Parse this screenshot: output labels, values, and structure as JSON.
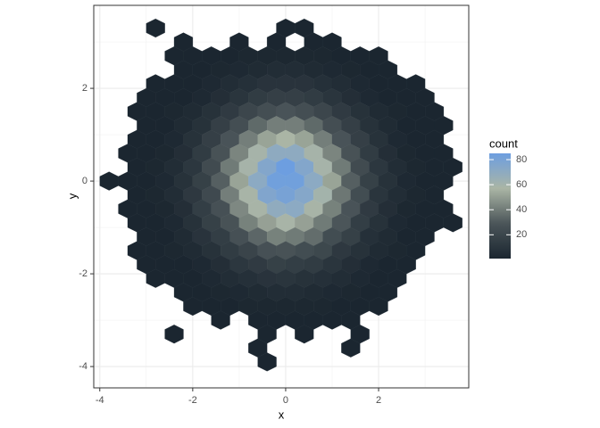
{
  "chart_data": {
    "type": "hexbin",
    "x_label": "x",
    "y_label": "y",
    "xlim": [
      -4.13,
      3.94
    ],
    "ylim": [
      -4.46,
      3.79
    ],
    "xticks": [
      -4,
      -2,
      0,
      2
    ],
    "yticks": [
      -4,
      -2,
      0,
      2
    ],
    "grid": true,
    "legend": {
      "title": "count",
      "position": "right",
      "ticks": [
        20,
        40,
        60,
        80
      ],
      "colors": [
        "#1b2630",
        "#4b5559",
        "#aab5a5",
        "#6d9ee0"
      ]
    },
    "rows": [
      {
        "y": 3.3,
        "x": [
          -2.8,
          0,
          0.4
        ],
        "count": [
          1,
          1,
          1
        ]
      },
      {
        "y": 3.0,
        "x": [
          -2.2,
          -1.0,
          -0.2,
          0.6,
          1.0
        ],
        "count": [
          1,
          1,
          1,
          1,
          1
        ]
      },
      {
        "y": 2.7,
        "x": [
          -2.4,
          -2.0,
          -1.6,
          -1.2,
          -0.8,
          -0.4,
          0,
          0.4,
          0.8,
          1.2,
          1.6,
          2.0
        ],
        "count": [
          1,
          1,
          1,
          1,
          2,
          2,
          2,
          2,
          2,
          1,
          1,
          1
        ]
      },
      {
        "y": 2.4,
        "x": [
          -2.2,
          -1.8,
          -1.4,
          -1.0,
          -0.6,
          -0.2,
          0.2,
          0.6,
          1.0,
          1.4,
          1.8,
          2.2
        ],
        "count": [
          1,
          1,
          2,
          3,
          4,
          5,
          5,
          4,
          3,
          2,
          1,
          1
        ]
      },
      {
        "y": 2.1,
        "x": [
          -2.8,
          -2.4,
          -2.0,
          -1.6,
          -1.2,
          -0.8,
          -0.4,
          0,
          0.4,
          0.8,
          1.2,
          1.6,
          2.0,
          2.4,
          2.8
        ],
        "count": [
          1,
          1,
          1,
          3,
          5,
          7,
          9,
          9,
          9,
          7,
          5,
          3,
          1,
          1,
          1
        ]
      },
      {
        "y": 1.8,
        "x": [
          -3.0,
          -2.6,
          -2.2,
          -1.8,
          -1.4,
          -1.0,
          -0.6,
          -0.2,
          0.2,
          0.6,
          1.0,
          1.4,
          1.8,
          2.2,
          2.6,
          3.0
        ],
        "count": [
          1,
          1,
          1,
          3,
          6,
          10,
          14,
          16,
          16,
          14,
          10,
          6,
          3,
          1,
          1,
          1
        ]
      },
      {
        "y": 1.5,
        "x": [
          -3.2,
          -2.8,
          -2.4,
          -2.0,
          -1.6,
          -1.2,
          -0.8,
          -0.4,
          0,
          0.4,
          0.8,
          1.2,
          1.6,
          2.0,
          2.4,
          2.8,
          3.2
        ],
        "count": [
          1,
          1,
          2,
          4,
          8,
          13,
          20,
          25,
          28,
          25,
          20,
          13,
          8,
          4,
          2,
          1,
          1
        ]
      },
      {
        "y": 1.2,
        "x": [
          -3.0,
          -2.6,
          -2.2,
          -1.8,
          -1.4,
          -1.0,
          -0.6,
          -0.2,
          0.2,
          0.6,
          1.0,
          1.4,
          1.8,
          2.2,
          2.6,
          3.0,
          3.4
        ],
        "count": [
          1,
          1,
          4,
          8,
          16,
          25,
          35,
          41,
          41,
          35,
          25,
          16,
          8,
          4,
          1,
          1,
          1
        ]
      },
      {
        "y": 0.9,
        "x": [
          -3.2,
          -2.8,
          -2.4,
          -2.0,
          -1.6,
          -1.2,
          -0.8,
          -0.4,
          0,
          0.4,
          0.8,
          1.2,
          1.6,
          2.0,
          2.4,
          2.8,
          3.2
        ],
        "count": [
          1,
          1,
          3,
          8,
          16,
          28,
          41,
          52,
          57,
          52,
          41,
          28,
          16,
          8,
          3,
          1,
          1
        ]
      },
      {
        "y": 0.6,
        "x": [
          -3.4,
          -3.0,
          -2.6,
          -2.2,
          -1.8,
          -1.4,
          -1.0,
          -0.6,
          -0.2,
          0.2,
          0.6,
          1.0,
          1.4,
          1.8,
          2.2,
          2.6,
          3.0,
          3.4
        ],
        "count": [
          1,
          1,
          2,
          6,
          14,
          27,
          43,
          59,
          70,
          70,
          59,
          43,
          27,
          14,
          6,
          2,
          1,
          1
        ]
      },
      {
        "y": 0.3,
        "x": [
          -3.2,
          -2.8,
          -2.4,
          -2.0,
          -1.6,
          -1.2,
          -0.8,
          -0.4,
          0,
          0.4,
          0.8,
          1.2,
          1.6,
          2.0,
          2.4,
          2.8,
          3.2,
          3.6
        ],
        "count": [
          1,
          2,
          5,
          11,
          23,
          40,
          59,
          75,
          85,
          75,
          59,
          40,
          23,
          11,
          5,
          2,
          1,
          1
        ]
      },
      {
        "y": 0,
        "x": [
          -3.8,
          -3.4,
          -3.0,
          -2.6,
          -2.2,
          -1.8,
          -1.4,
          -1.0,
          -0.6,
          -0.2,
          0.2,
          0.6,
          1.0,
          1.4,
          1.8,
          2.2,
          2.6,
          3.0,
          3.4
        ],
        "count": [
          1,
          1,
          1,
          3,
          8,
          17,
          32,
          52,
          71,
          83,
          83,
          71,
          52,
          32,
          17,
          8,
          3,
          1,
          1
        ]
      },
      {
        "y": -0.3,
        "x": [
          -3.2,
          -2.8,
          -2.4,
          -2.0,
          -1.6,
          -1.2,
          -0.8,
          -0.4,
          0,
          0.4,
          0.8,
          1.2,
          1.6,
          2.0,
          2.4,
          2.8,
          3.2
        ],
        "count": [
          1,
          2,
          5,
          12,
          22,
          41,
          58,
          76,
          80,
          74,
          60,
          39,
          24,
          10,
          5,
          2,
          1
        ]
      },
      {
        "y": -0.6,
        "x": [
          -3.4,
          -3.0,
          -2.6,
          -2.2,
          -1.8,
          -1.4,
          -1.0,
          -0.6,
          -0.2,
          0.2,
          0.6,
          1.0,
          1.4,
          1.8,
          2.2,
          2.6,
          3.0,
          3.4
        ],
        "count": [
          1,
          1,
          2,
          6,
          15,
          26,
          44,
          58,
          69,
          71,
          58,
          42,
          28,
          13,
          6,
          2,
          1,
          1
        ]
      },
      {
        "y": -0.9,
        "x": [
          -3.2,
          -2.8,
          -2.4,
          -2.0,
          -1.6,
          -1.2,
          -0.8,
          -0.4,
          0,
          0.4,
          0.8,
          1.2,
          1.6,
          2.0,
          2.4,
          2.8,
          3.2,
          3.6
        ],
        "count": [
          1,
          1,
          3,
          8,
          17,
          27,
          42,
          51,
          58,
          51,
          40,
          29,
          15,
          8,
          3,
          1,
          1,
          1
        ]
      },
      {
        "y": -1.2,
        "x": [
          -3.0,
          -2.6,
          -2.2,
          -1.8,
          -1.4,
          -1.0,
          -0.6,
          -0.2,
          0.2,
          0.6,
          1.0,
          1.4,
          1.8,
          2.2,
          2.6,
          3.0
        ],
        "count": [
          1,
          1,
          4,
          9,
          15,
          26,
          34,
          42,
          40,
          36,
          24,
          17,
          7,
          4,
          1,
          1
        ]
      },
      {
        "y": -1.5,
        "x": [
          -3.2,
          -2.8,
          -2.4,
          -2.0,
          -1.6,
          -1.2,
          -0.8,
          -0.4,
          0,
          0.4,
          0.8,
          1.2,
          1.6,
          2.0,
          2.4,
          2.8
        ],
        "count": [
          1,
          1,
          2,
          4,
          8,
          14,
          19,
          26,
          27,
          24,
          21,
          12,
          8,
          4,
          2,
          1
        ]
      },
      {
        "y": -1.8,
        "x": [
          -3.0,
          -2.6,
          -2.2,
          -1.8,
          -1.4,
          -1.0,
          -0.6,
          -0.2,
          0.2,
          0.6,
          1.0,
          1.4,
          1.8,
          2.2,
          2.6
        ],
        "count": [
          1,
          1,
          1,
          3,
          6,
          11,
          13,
          17,
          15,
          14,
          10,
          6,
          3,
          1,
          1
        ]
      },
      {
        "y": -2.1,
        "x": [
          -2.8,
          -2.4,
          -2.0,
          -1.6,
          -1.2,
          -0.8,
          -0.4,
          0,
          0.4,
          0.8,
          1.2,
          1.6,
          2.0,
          2.4
        ],
        "count": [
          1,
          1,
          1,
          3,
          5,
          7,
          9,
          10,
          8,
          7,
          5,
          3,
          1,
          1
        ]
      },
      {
        "y": -2.4,
        "x": [
          -2.2,
          -1.8,
          -1.4,
          -1.0,
          -0.6,
          -0.2,
          0.2,
          0.6,
          1.0,
          1.4,
          1.8,
          2.2
        ],
        "count": [
          1,
          1,
          2,
          3,
          4,
          5,
          5,
          4,
          3,
          2,
          1,
          1
        ]
      },
      {
        "y": -2.7,
        "x": [
          -2.0,
          -1.6,
          -1.2,
          -0.8,
          -0.4,
          0,
          0.4,
          0.8,
          1.2,
          1.6,
          2.0
        ],
        "count": [
          1,
          1,
          1,
          2,
          2,
          2,
          2,
          2,
          1,
          1,
          1
        ]
      },
      {
        "y": -3.0,
        "x": [
          -1.4,
          -0.6,
          -0.2,
          0.2,
          0.6,
          1.0,
          1.4
        ],
        "count": [
          1,
          1,
          1,
          1,
          1,
          1,
          1
        ]
      },
      {
        "y": -3.3,
        "x": [
          -2.4,
          -0.4,
          0.4,
          1.6
        ],
        "count": [
          1,
          1,
          1,
          1
        ]
      },
      {
        "y": -3.6,
        "x": [
          -0.6,
          1.4
        ],
        "count": [
          1,
          1
        ]
      },
      {
        "y": -3.9,
        "x": [
          -0.4
        ],
        "count": [
          1
        ]
      }
    ]
  }
}
